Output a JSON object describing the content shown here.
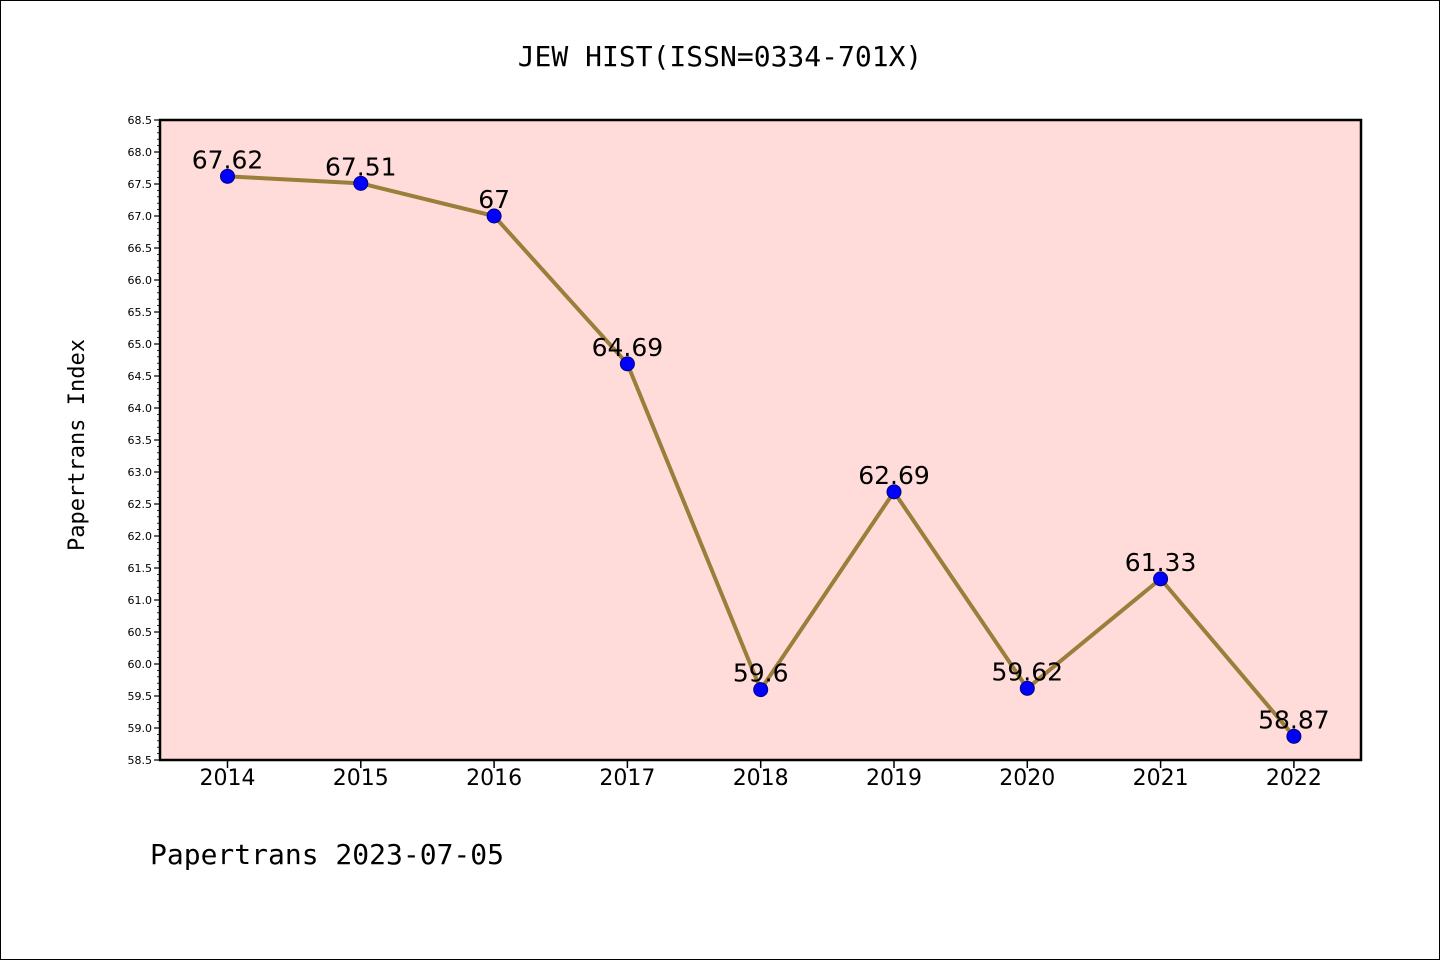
{
  "chart_data": {
    "type": "line",
    "title": "JEW HIST(ISSN=0334-701X)",
    "xlabel": "",
    "ylabel": "Papertrans Index",
    "categories": [
      "2014",
      "2015",
      "2016",
      "2017",
      "2018",
      "2019",
      "2020",
      "2021",
      "2022"
    ],
    "series": [
      {
        "values": [
          67.62,
          67.51,
          67,
          64.69,
          59.6,
          62.69,
          59.62,
          61.33,
          58.87
        ],
        "labels": [
          "67.62",
          "67.51",
          "67",
          "64.69",
          "59.6",
          "62.69",
          "59.62",
          "61.33",
          "58.87"
        ]
      }
    ],
    "ylim": [
      58.5,
      68.5
    ],
    "yticks": [
      "58.5",
      "59.0",
      "59.5",
      "60.0",
      "60.5",
      "61.0",
      "61.5",
      "62.0",
      "62.5",
      "63.0",
      "63.5",
      "64.0",
      "64.5",
      "65.0",
      "65.5",
      "66.0",
      "66.5",
      "67.0",
      "67.5",
      "68.0",
      "68.5"
    ],
    "grid": false,
    "legend": "none",
    "footer": "Papertrans 2023-07-05",
    "colors": {
      "plot_background": "#ffdcda",
      "line": "#9b7e3a",
      "marker_fill": "#0000ff",
      "marker_edge": "#000080"
    }
  }
}
